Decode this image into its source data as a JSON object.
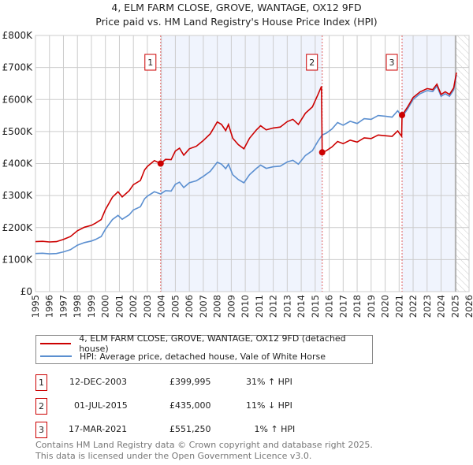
{
  "title_line1": "4, ELM FARM CLOSE, GROVE, WANTAGE, OX12 9FD",
  "title_line2": "Price paid vs. HM Land Registry's House Price Index (HPI)",
  "legend": [
    {
      "label": "4, ELM FARM CLOSE, GROVE, WANTAGE, OX12 9FD (detached house)",
      "color": "#cc0000"
    },
    {
      "label": "HPI: Average price, detached house, Vale of White Horse",
      "color": "#5b8fd0"
    }
  ],
  "sales": [
    {
      "num": "1",
      "date": "12-DEC-2003",
      "price": "£399,995",
      "hpi": "31% ↑ HPI"
    },
    {
      "num": "2",
      "date": "01-JUL-2015",
      "price": "£435,000",
      "hpi": "11% ↓ HPI"
    },
    {
      "num": "3",
      "date": "17-MAR-2021",
      "price": "£551,250",
      "hpi": " 1% ↑ HPI"
    }
  ],
  "footer_line1": "Contains HM Land Registry data © Crown copyright and database right 2025.",
  "footer_line2": "This data is licensed under the Open Government Licence v3.0.",
  "chart_data": {
    "type": "line",
    "xlim": [
      1995,
      2026
    ],
    "ylim": [
      0,
      800000
    ],
    "yticks": [
      0,
      100000,
      200000,
      300000,
      400000,
      500000,
      600000,
      700000,
      800000
    ],
    "ytick_labels": [
      "£0",
      "£100K",
      "£200K",
      "£300K",
      "£400K",
      "£500K",
      "£600K",
      "£700K",
      "£800K"
    ],
    "xticks": [
      1995,
      1996,
      1997,
      1998,
      1999,
      2000,
      2001,
      2002,
      2003,
      2004,
      2005,
      2006,
      2007,
      2008,
      2009,
      2010,
      2011,
      2012,
      2013,
      2014,
      2015,
      2016,
      2017,
      2018,
      2019,
      2020,
      2021,
      2022,
      2023,
      2024,
      2025,
      2026
    ],
    "grid": true,
    "shaded_periods": [
      [
        2003.95,
        2015.5
      ],
      [
        2021.21,
        2025.05
      ]
    ],
    "forecast_hatch_from": 2025.05,
    "sale_points": [
      {
        "label": "1",
        "x": 2003.95,
        "y": 399995
      },
      {
        "label": "2",
        "x": 2015.5,
        "y": 435000
      },
      {
        "label": "3",
        "x": 2021.21,
        "y": 551250
      }
    ],
    "series": [
      {
        "name": "HPI: Average price, detached house, Vale of White Horse",
        "color": "#5b8fd0",
        "unit": "£K",
        "points": [
          [
            1995,
            119
          ],
          [
            1995.5,
            120
          ],
          [
            1996,
            118
          ],
          [
            1996.5,
            119
          ],
          [
            1997,
            124
          ],
          [
            1997.5,
            131
          ],
          [
            1998,
            145
          ],
          [
            1998.5,
            153
          ],
          [
            1999,
            158
          ],
          [
            1999.3,
            163
          ],
          [
            1999.7,
            172
          ],
          [
            2000,
            195
          ],
          [
            2000.5,
            225
          ],
          [
            2000.9,
            238
          ],
          [
            2001.2,
            226
          ],
          [
            2001.7,
            240
          ],
          [
            2002,
            255
          ],
          [
            2002.5,
            265
          ],
          [
            2002.8,
            290
          ],
          [
            2003,
            298
          ],
          [
            2003.5,
            312
          ],
          [
            2003.95,
            305
          ],
          [
            2004.3,
            315
          ],
          [
            2004.7,
            314
          ],
          [
            2005,
            335
          ],
          [
            2005.3,
            342
          ],
          [
            2005.6,
            325
          ],
          [
            2006,
            340
          ],
          [
            2006.5,
            346
          ],
          [
            2007,
            360
          ],
          [
            2007.5,
            376
          ],
          [
            2008,
            404
          ],
          [
            2008.3,
            398
          ],
          [
            2008.6,
            384
          ],
          [
            2008.8,
            398
          ],
          [
            2009.1,
            365
          ],
          [
            2009.5,
            350
          ],
          [
            2009.9,
            340
          ],
          [
            2010.3,
            365
          ],
          [
            2010.8,
            385
          ],
          [
            2011.1,
            395
          ],
          [
            2011.5,
            385
          ],
          [
            2012,
            390
          ],
          [
            2012.5,
            392
          ],
          [
            2013,
            405
          ],
          [
            2013.4,
            410
          ],
          [
            2013.8,
            398
          ],
          [
            2014.3,
            425
          ],
          [
            2014.8,
            440
          ],
          [
            2015.2,
            470
          ],
          [
            2015.5,
            489
          ],
          [
            2015.8,
            495
          ],
          [
            2016.2,
            508
          ],
          [
            2016.6,
            528
          ],
          [
            2017,
            520
          ],
          [
            2017.5,
            532
          ],
          [
            2018,
            525
          ],
          [
            2018.5,
            540
          ],
          [
            2019,
            538
          ],
          [
            2019.5,
            550
          ],
          [
            2020,
            548
          ],
          [
            2020.5,
            545
          ],
          [
            2020.9,
            565
          ],
          [
            2021.21,
            546
          ],
          [
            2021.6,
            570
          ],
          [
            2022,
            600
          ],
          [
            2022.5,
            618
          ],
          [
            2023,
            628
          ],
          [
            2023.4,
            625
          ],
          [
            2023.7,
            642
          ],
          [
            2024,
            610
          ],
          [
            2024.3,
            618
          ],
          [
            2024.6,
            610
          ],
          [
            2024.9,
            630
          ],
          [
            2025.1,
            677
          ]
        ]
      },
      {
        "name": "4, ELM FARM CLOSE, GROVE, WANTAGE, OX12 9FD (detached house)",
        "color": "#cc0000",
        "unit": "£K",
        "points": [
          [
            1995,
            156
          ],
          [
            1995.5,
            157
          ],
          [
            1996,
            155
          ],
          [
            1996.5,
            156
          ],
          [
            1997,
            163
          ],
          [
            1997.5,
            172
          ],
          [
            1998,
            190
          ],
          [
            1998.5,
            201
          ],
          [
            1999,
            207
          ],
          [
            1999.3,
            214
          ],
          [
            1999.7,
            225
          ],
          [
            2000,
            256
          ],
          [
            2000.5,
            295
          ],
          [
            2000.9,
            312
          ],
          [
            2001.2,
            296
          ],
          [
            2001.7,
            315
          ],
          [
            2002,
            334
          ],
          [
            2002.5,
            347
          ],
          [
            2002.8,
            380
          ],
          [
            2003,
            391
          ],
          [
            2003.5,
            409
          ],
          [
            2003.95,
            400
          ],
          [
            2004.3,
            413
          ],
          [
            2004.7,
            412
          ],
          [
            2005,
            439
          ],
          [
            2005.3,
            448
          ],
          [
            2005.6,
            426
          ],
          [
            2006,
            446
          ],
          [
            2006.5,
            454
          ],
          [
            2007,
            472
          ],
          [
            2007.5,
            493
          ],
          [
            2008,
            530
          ],
          [
            2008.3,
            522
          ],
          [
            2008.6,
            503
          ],
          [
            2008.8,
            522
          ],
          [
            2009.1,
            479
          ],
          [
            2009.5,
            459
          ],
          [
            2009.9,
            446
          ],
          [
            2010.3,
            479
          ],
          [
            2010.8,
            505
          ],
          [
            2011.1,
            518
          ],
          [
            2011.5,
            505
          ],
          [
            2012,
            511
          ],
          [
            2012.5,
            514
          ],
          [
            2013,
            531
          ],
          [
            2013.4,
            538
          ],
          [
            2013.8,
            522
          ],
          [
            2014.3,
            557
          ],
          [
            2014.8,
            577
          ],
          [
            2015.2,
            616
          ],
          [
            2015.45,
            641
          ],
          [
            2015.5,
            435
          ],
          [
            2015.8,
            440
          ],
          [
            2016.2,
            452
          ],
          [
            2016.6,
            469
          ],
          [
            2017,
            462
          ],
          [
            2017.5,
            473
          ],
          [
            2018,
            467
          ],
          [
            2018.5,
            480
          ],
          [
            2019,
            478
          ],
          [
            2019.5,
            489
          ],
          [
            2020,
            487
          ],
          [
            2020.5,
            485
          ],
          [
            2020.9,
            502
          ],
          [
            2021.18,
            485
          ],
          [
            2021.21,
            551
          ],
          [
            2021.6,
            576
          ],
          [
            2022,
            606
          ],
          [
            2022.5,
            624
          ],
          [
            2023,
            634
          ],
          [
            2023.4,
            631
          ],
          [
            2023.7,
            648
          ],
          [
            2024,
            616
          ],
          [
            2024.3,
            624
          ],
          [
            2024.6,
            616
          ],
          [
            2024.9,
            636
          ],
          [
            2025.1,
            684
          ]
        ]
      }
    ]
  }
}
